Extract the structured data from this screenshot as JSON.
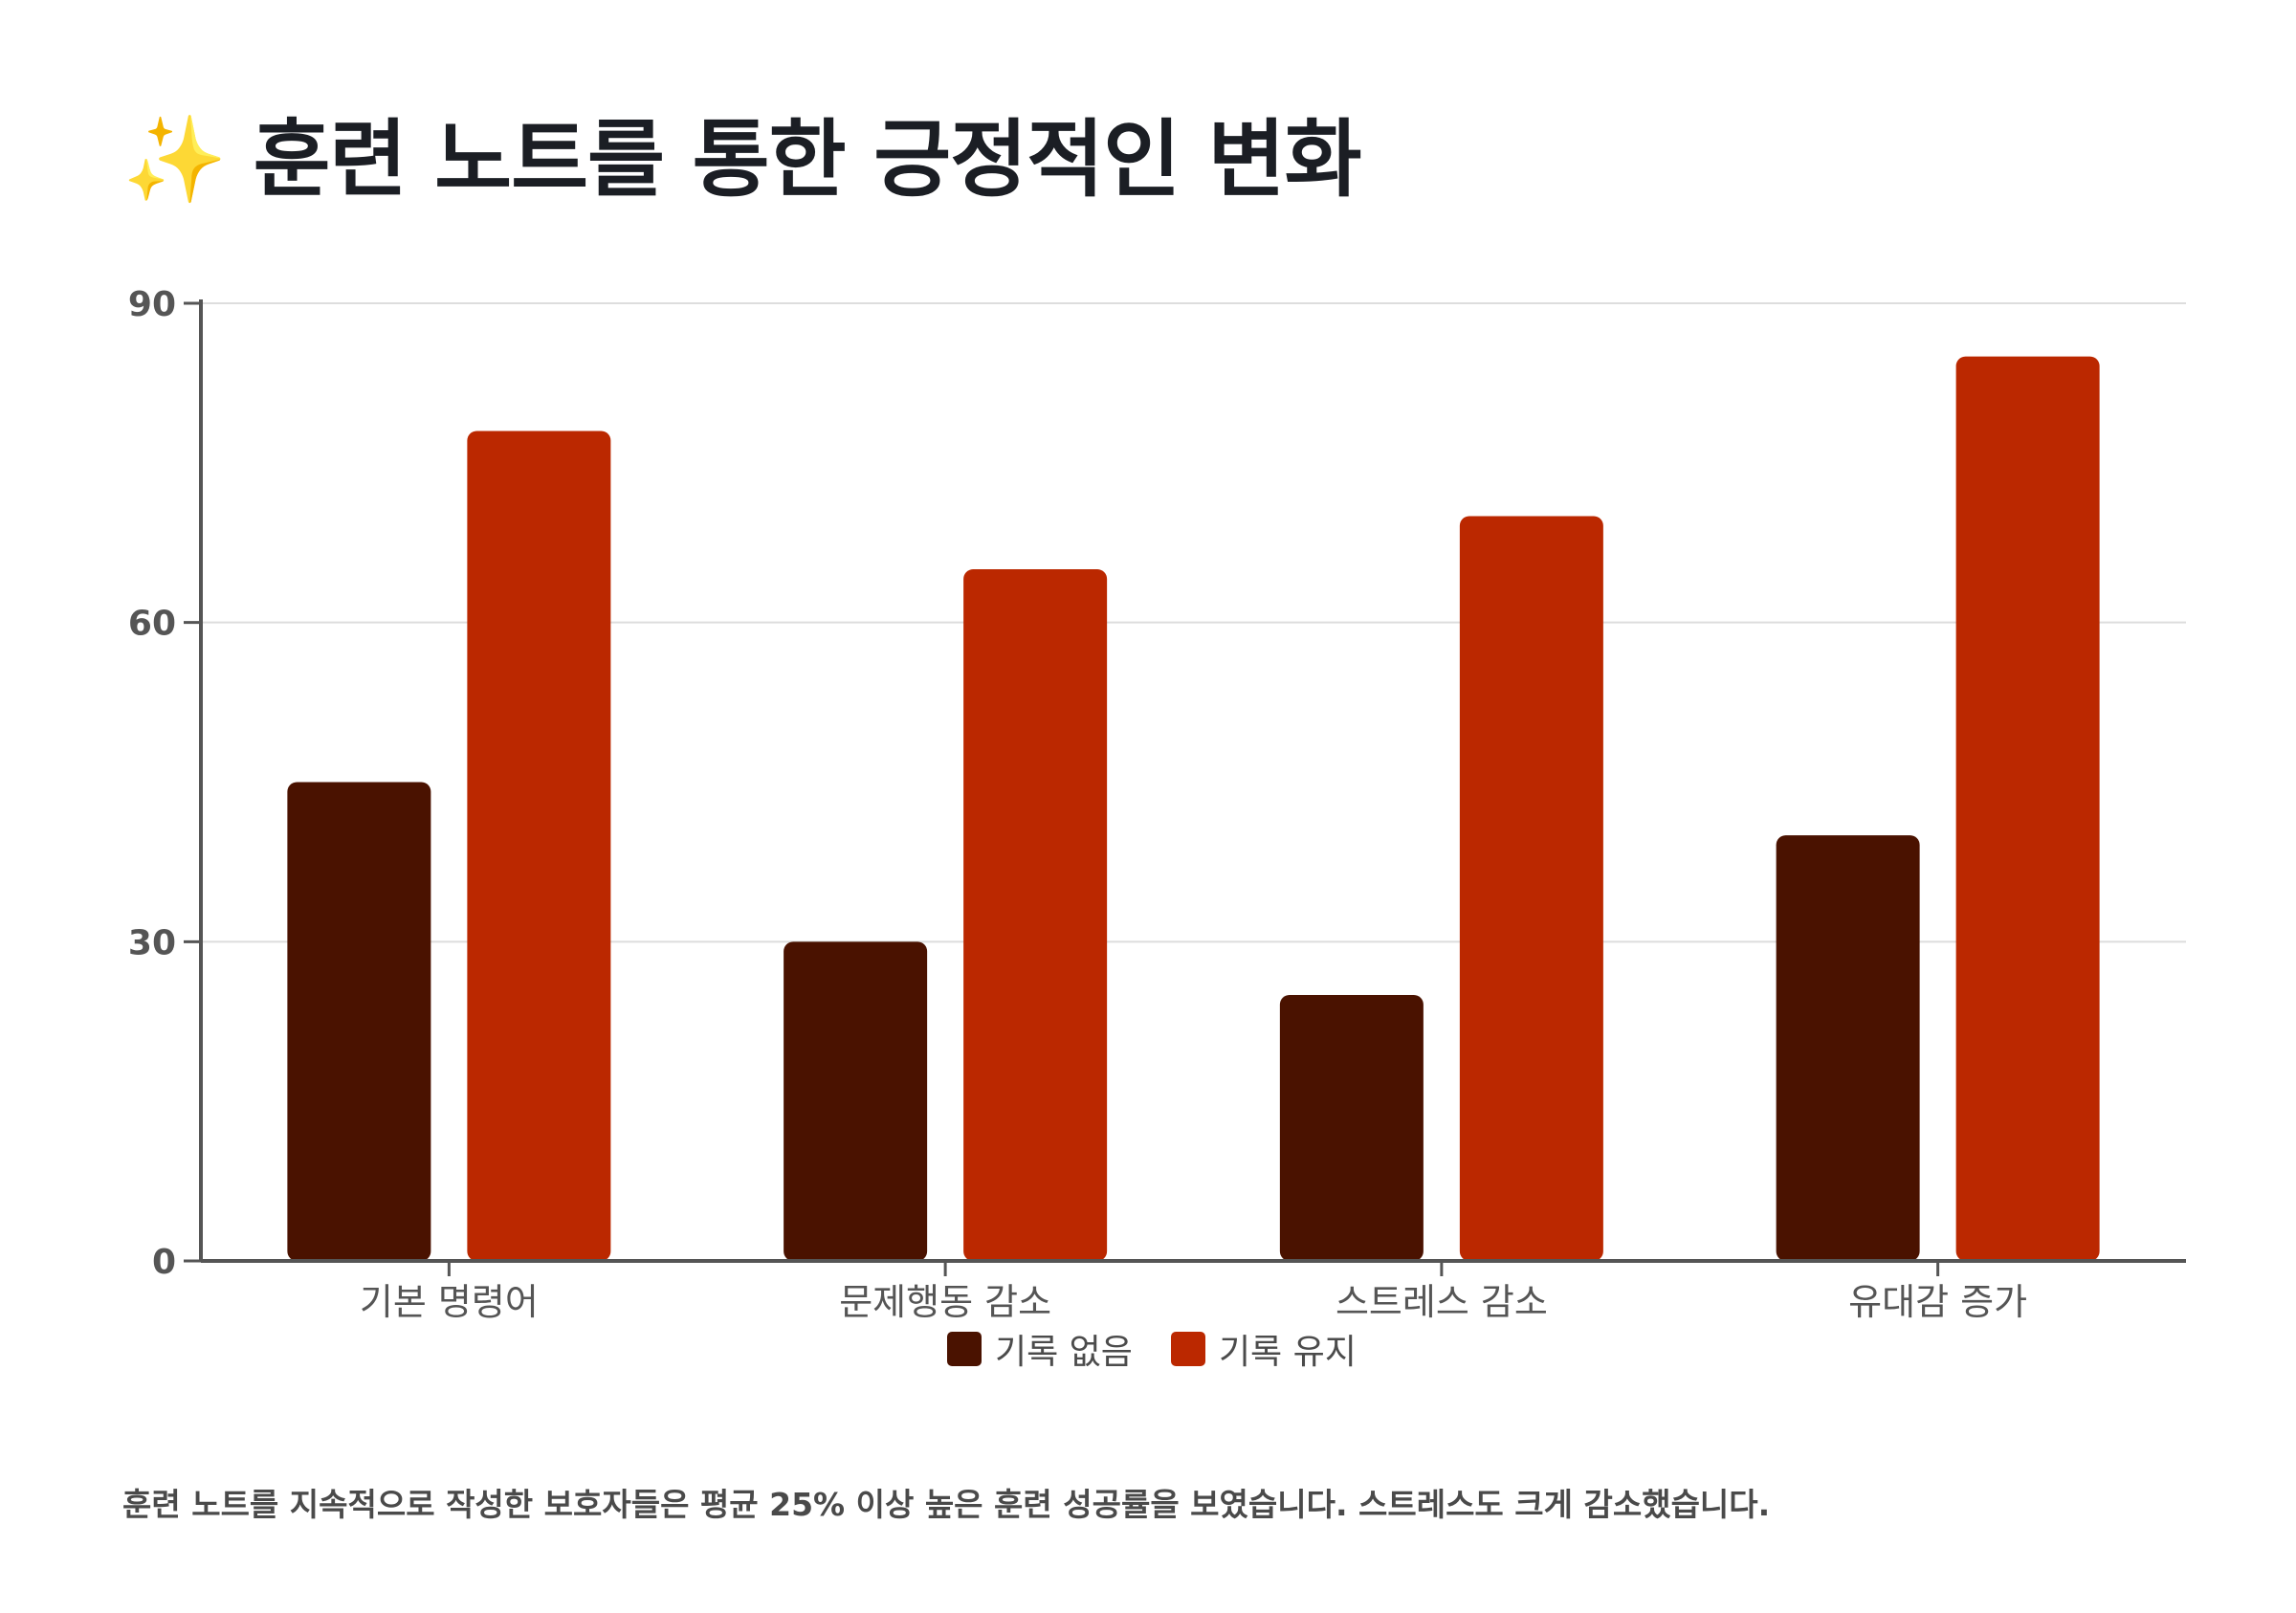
{
  "title": "훈련 노트를 통한 긍정적인 변화",
  "title_icon": "sparkles-icon",
  "title_icon_glyph": "✨",
  "footnote": "훈련 노트를 지속적으로 작성한 보호자들은 평균 25% 이상 높은 훈련 성공률을 보였습니다. 스트레스도 크게 감소했습니다.",
  "colors": {
    "series_a": "#4a1200",
    "series_b": "#bb2800",
    "axis": "#555555",
    "grid": "#dddddd",
    "tick_text": "#555555"
  },
  "chart_data": {
    "type": "bar",
    "title": "훈련 노트를 통한 긍정적인 변화",
    "xlabel": "",
    "ylabel": "",
    "categories": [
      "기본 명령어",
      "문제행동 감소",
      "스트레스 감소",
      "유대감 증가"
    ],
    "series": [
      {
        "name": "기록 없음",
        "values": [
          45,
          30,
          25,
          40
        ]
      },
      {
        "name": "기록 유지",
        "values": [
          78,
          65,
          70,
          85
        ]
      }
    ],
    "ylim": [
      0,
      90
    ],
    "yticks": [
      0,
      30,
      60,
      90
    ],
    "grid": true,
    "legend": "bottom-center"
  }
}
